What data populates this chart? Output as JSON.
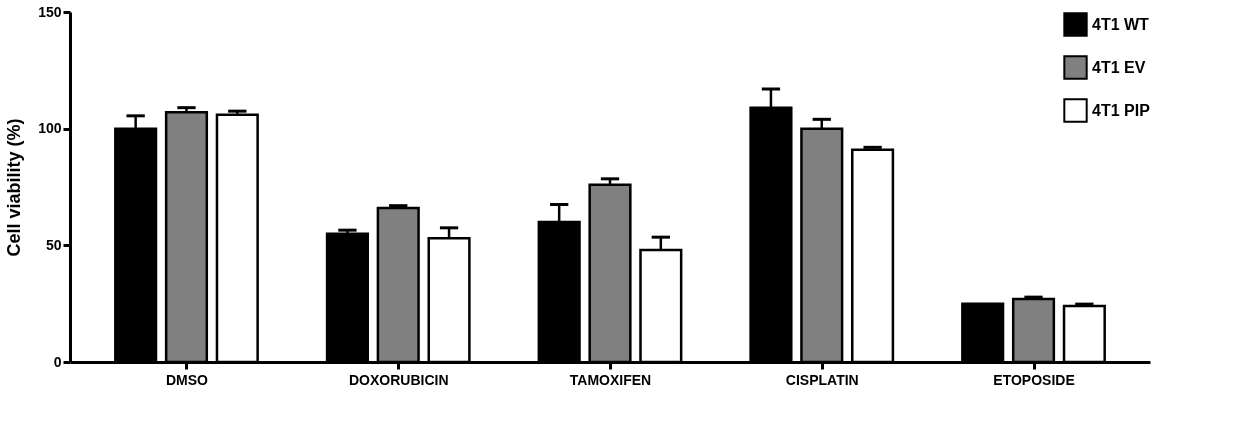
{
  "chart_data": {
    "type": "bar",
    "ylabel": "Cell viability (%)",
    "categories": [
      "DMSO",
      "DOXORUBICIN",
      "TAMOXIFEN",
      "CISPLATIN",
      "ETOPOSIDE"
    ],
    "series": [
      {
        "name": "4T1 WT",
        "color": "#000000",
        "values": [
          100,
          55,
          60,
          109,
          25
        ],
        "errors": [
          [
            100,
            105.5
          ],
          [
            55,
            56.5
          ],
          [
            60,
            67.5
          ],
          [
            109,
            117
          ],
          null
        ]
      },
      {
        "name": "4T1 EV",
        "color": "#808080",
        "values": [
          107,
          66,
          76,
          100,
          27
        ],
        "errors": [
          [
            107,
            109
          ],
          [
            66,
            67
          ],
          [
            76,
            78.5
          ],
          [
            100,
            104
          ],
          [
            27,
            27.8
          ]
        ]
      },
      {
        "name": "4T1 PIP",
        "color": "#ffffff",
        "values": [
          106,
          53,
          48,
          91,
          24
        ],
        "errors": [
          [
            106,
            107.5
          ],
          [
            53,
            57.5
          ],
          [
            48,
            53.5
          ],
          [
            91,
            92
          ],
          [
            24,
            24.8
          ]
        ]
      }
    ],
    "ylim": [
      0,
      150
    ],
    "yticks": [
      0,
      50,
      100,
      150
    ],
    "grid": false,
    "legend": "top right"
  }
}
